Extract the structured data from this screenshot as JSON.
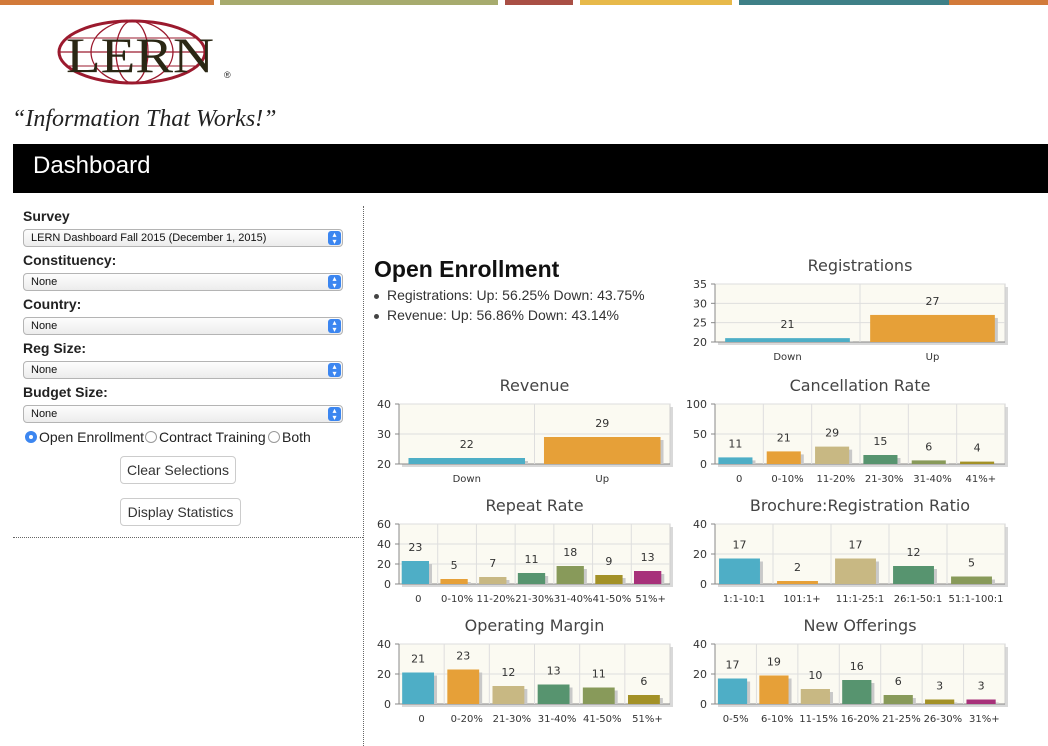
{
  "brand": {
    "logo_text": "LERN",
    "registered_mark": "®",
    "tagline": "“Information That Works!”",
    "top_bar_colors": [
      "#d27a3a",
      "#a7ab6e",
      "#a94f45",
      "#e7b94a",
      "#3e8087",
      "#d27a3a"
    ]
  },
  "header": {
    "title": "Dashboard"
  },
  "filters": {
    "survey": {
      "label": "Survey",
      "value": "LERN Dashboard Fall 2015 (December 1, 2015)"
    },
    "constituency": {
      "label": "Constituency:",
      "value": "None"
    },
    "country": {
      "label": "Country:",
      "value": "None"
    },
    "reg_size": {
      "label": "Reg Size:",
      "value": "None"
    },
    "budget_size": {
      "label": "Budget Size:",
      "value": "None"
    },
    "program_type": {
      "options": [
        "Open Enrollment",
        "Contract Training",
        "Both"
      ],
      "selected": "Open Enrollment"
    },
    "clear_button": "Clear Selections",
    "display_button": "Display Statistics"
  },
  "summary": {
    "title": "Open Enrollment",
    "bullets": [
      "Registrations: Up: 56.25% Down: 43.75%",
      "Revenue: Up: 56.86% Down: 43.14%"
    ]
  },
  "colors": {
    "accent": "#3c86f0",
    "plot_bg": "#fbfaf2",
    "bars": [
      "#4eaec6",
      "#e6a038",
      "#c8b883",
      "#57946f",
      "#889a5a",
      "#a39127",
      "#a7317a"
    ]
  },
  "chart_data": [
    {
      "id": "registrations",
      "type": "bar",
      "title": "Registrations",
      "categories": [
        "Down",
        "Up"
      ],
      "values": [
        21,
        27
      ],
      "ylim": [
        20,
        35
      ],
      "yticks": [
        20,
        25,
        30,
        35
      ]
    },
    {
      "id": "revenue",
      "type": "bar",
      "title": "Revenue",
      "categories": [
        "Down",
        "Up"
      ],
      "values": [
        22,
        29
      ],
      "ylim": [
        20,
        40
      ],
      "yticks": [
        20,
        30,
        40
      ]
    },
    {
      "id": "cancellation",
      "type": "bar",
      "title": "Cancellation Rate",
      "categories": [
        "0",
        "0-10%",
        "11-20%",
        "21-30%",
        "31-40%",
        "41%+"
      ],
      "values": [
        11,
        21,
        29,
        15,
        6,
        4
      ],
      "ylim": [
        0,
        100
      ],
      "yticks": [
        0,
        50,
        100
      ]
    },
    {
      "id": "repeat",
      "type": "bar",
      "title": "Repeat Rate",
      "categories": [
        "0",
        "0-10%",
        "11-20%",
        "21-30%",
        "31-40%",
        "41-50%",
        "51%+"
      ],
      "values": [
        23,
        5,
        7,
        11,
        18,
        9,
        13
      ],
      "ylim": [
        0,
        60
      ],
      "yticks": [
        0,
        20,
        40,
        60
      ]
    },
    {
      "id": "brochure",
      "type": "bar",
      "title": "Brochure:Registration Ratio",
      "categories": [
        "1:1-10:1",
        "101:1+",
        "11:1-25:1",
        "26:1-50:1",
        "51:1-100:1"
      ],
      "values": [
        17,
        2,
        17,
        12,
        5
      ],
      "ylim": [
        0,
        40
      ],
      "yticks": [
        0,
        20,
        40
      ]
    },
    {
      "id": "margin",
      "type": "bar",
      "title": "Operating Margin",
      "categories": [
        "0",
        "0-20%",
        "21-30%",
        "31-40%",
        "41-50%",
        "51%+"
      ],
      "values": [
        21,
        23,
        12,
        13,
        11,
        6
      ],
      "ylim": [
        0,
        40
      ],
      "yticks": [
        0,
        20,
        40
      ]
    },
    {
      "id": "offerings",
      "type": "bar",
      "title": "New Offerings",
      "categories": [
        "0-5%",
        "6-10%",
        "11-15%",
        "16-20%",
        "21-25%",
        "26-30%",
        "31%+"
      ],
      "values": [
        17,
        19,
        10,
        16,
        6,
        3,
        3
      ],
      "ylim": [
        0,
        40
      ],
      "yticks": [
        0,
        20,
        40
      ]
    }
  ]
}
